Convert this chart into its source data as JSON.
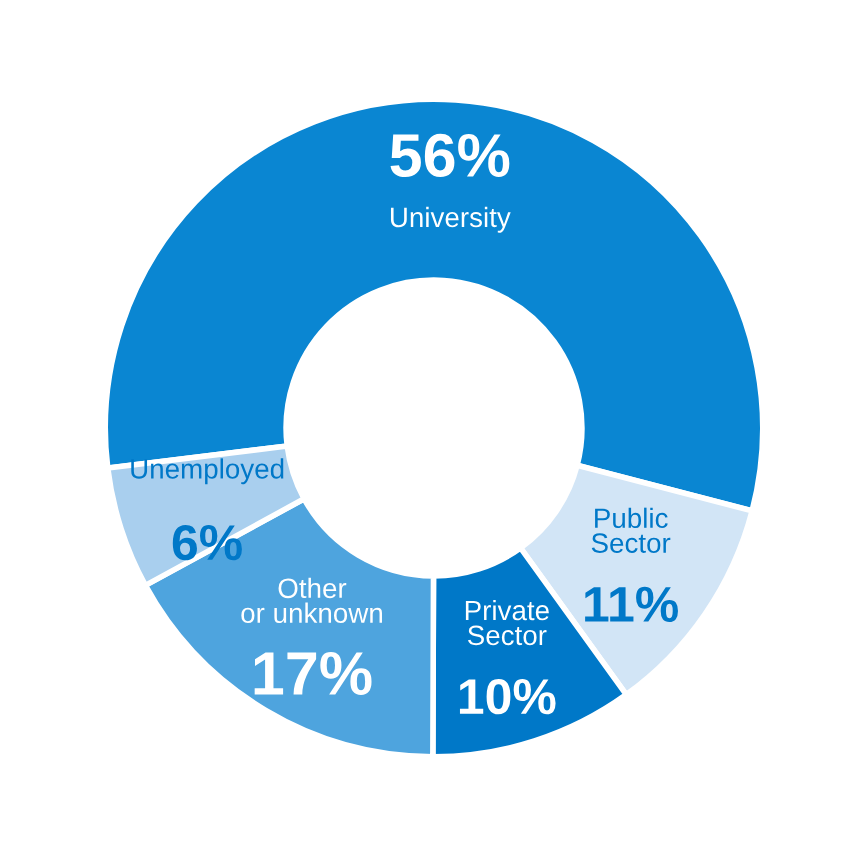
{
  "chart_data": {
    "type": "donut",
    "categories": [
      "University",
      "Public\nSector",
      "Private\nSector",
      "Other\nor unknown",
      "Unemployed"
    ],
    "values": [
      56,
      11,
      10,
      17,
      6
    ],
    "value_labels": [
      "56%",
      "11%",
      "10%",
      "17%",
      "6%"
    ],
    "colors": [
      "#0a86d2",
      "#d2e5f6",
      "#0078c8",
      "#4ea4de",
      "#a9cfee"
    ]
  }
}
